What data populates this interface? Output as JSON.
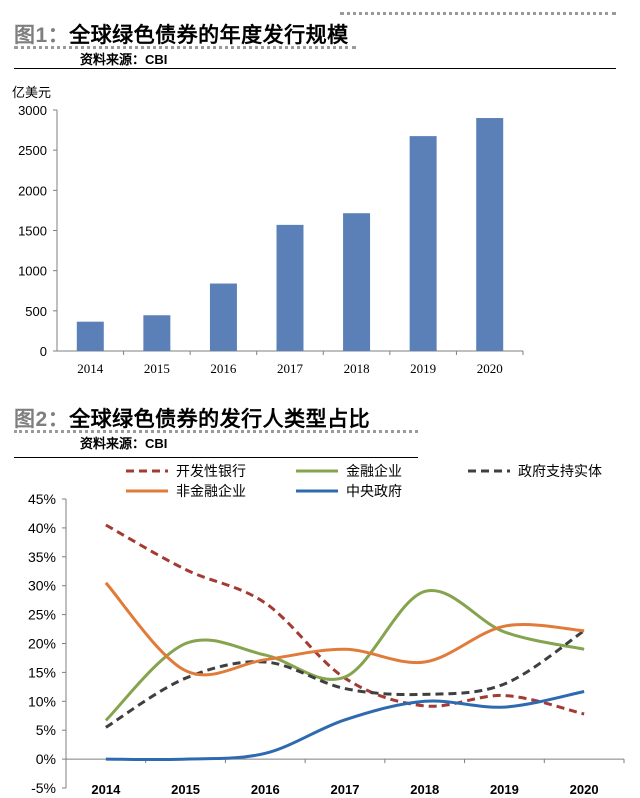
{
  "figure1": {
    "number": "图1",
    "colon": "：",
    "title": "全球绿色债券的年度发行规模",
    "source": "资料来源：CBI"
  },
  "figure2": {
    "number": "图2",
    "colon": "：",
    "title": "全球绿色债券的发行人类型占比",
    "source": "资料来源：CBI"
  },
  "chart_data": [
    {
      "type": "bar",
      "title": "",
      "unit_label": "亿美元",
      "xlabel": "",
      "ylabel": "",
      "categories": [
        "2014",
        "2015",
        "2016",
        "2017",
        "2018",
        "2019",
        "2020"
      ],
      "values": [
        365,
        445,
        840,
        1570,
        1715,
        2675,
        2900
      ],
      "ylim": [
        0,
        3000
      ],
      "yticks": [
        "0",
        "500",
        "1000",
        "1500",
        "2000",
        "2500",
        "3000"
      ],
      "grid": false,
      "color": "#5b80b8"
    },
    {
      "type": "line",
      "title": "",
      "xlabel": "",
      "ylabel": "",
      "categories": [
        "2014",
        "2015",
        "2016",
        "2017",
        "2018",
        "2019",
        "2020"
      ],
      "ylim": [
        -0.05,
        0.45
      ],
      "yticks": [
        "45%",
        "40%",
        "35%",
        "30%",
        "25%",
        "20%",
        "15%",
        "10%",
        "5%",
        "0%",
        "-5%"
      ],
      "legend_position": "top",
      "grid": false,
      "series": [
        {
          "name": "开发性银行",
          "color": "#a33a33",
          "dash": "dashed",
          "values": [
            0.405,
            0.328,
            0.27,
            0.14,
            0.092,
            0.11,
            0.078
          ]
        },
        {
          "name": "金融企业",
          "color": "#86a34e",
          "dash": "solid",
          "values": [
            0.067,
            0.2,
            0.18,
            0.142,
            0.29,
            0.22,
            0.19
          ]
        },
        {
          "name": "政府支持实体",
          "color": "#3f3f3f",
          "dash": "dashed",
          "values": [
            0.055,
            0.14,
            0.168,
            0.122,
            0.112,
            0.13,
            0.222
          ]
        },
        {
          "name": "非金融企业",
          "color": "#e07b39",
          "dash": "solid",
          "values": [
            0.305,
            0.153,
            0.172,
            0.19,
            0.168,
            0.23,
            0.222
          ]
        },
        {
          "name": "中央政府",
          "color": "#2e6ab0",
          "dash": "solid",
          "values": [
            0.0,
            0.0,
            0.01,
            0.068,
            0.1,
            0.09,
            0.117
          ]
        }
      ]
    }
  ]
}
